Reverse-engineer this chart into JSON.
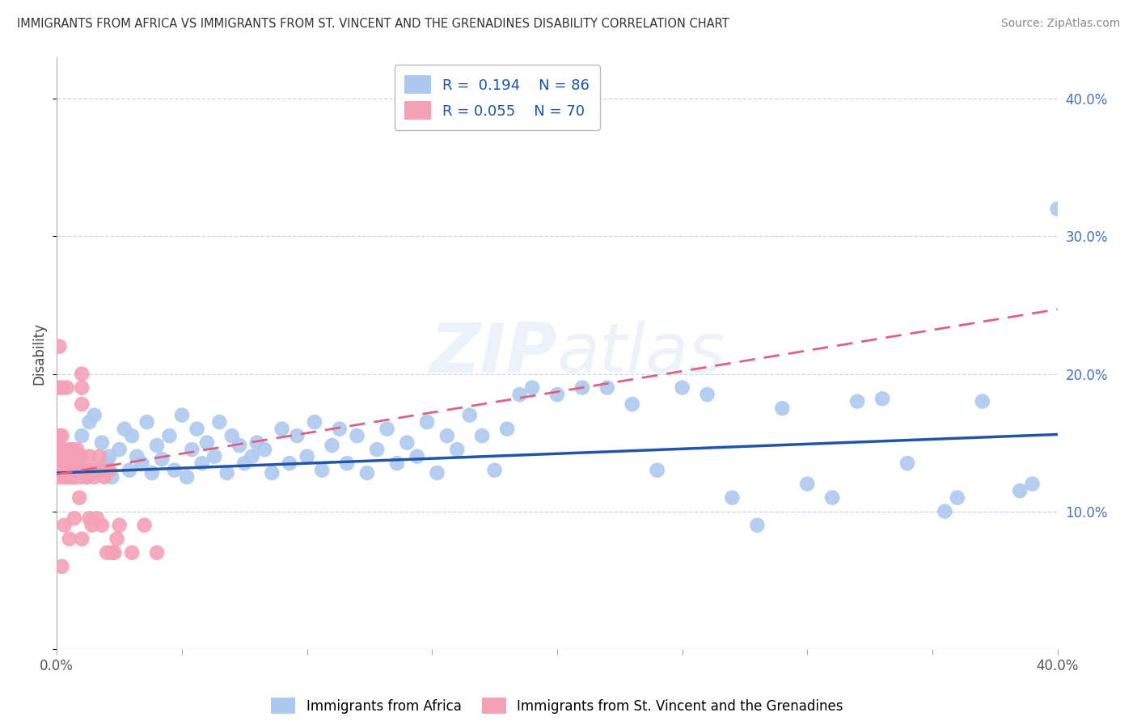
{
  "title": "IMMIGRANTS FROM AFRICA VS IMMIGRANTS FROM ST. VINCENT AND THE GRENADINES DISABILITY CORRELATION CHART",
  "source": "Source: ZipAtlas.com",
  "ylabel": "Disability",
  "xlim": [
    0.0,
    0.4
  ],
  "ylim": [
    0.0,
    0.43
  ],
  "series1": {
    "name": "Immigrants from Africa",
    "color": "#adc9ef",
    "R": 0.194,
    "N": 86,
    "line_color": "#2255aa",
    "trend_slope": 0.07,
    "trend_intercept": 0.128
  },
  "series2": {
    "name": "Immigrants from St. Vincent and the Grenadines",
    "color": "#f4a0b5",
    "R": 0.055,
    "N": 70,
    "line_color": "#e06080",
    "trend_slope": 0.3,
    "trend_intercept": 0.127
  },
  "watermark": "ZIPatlas",
  "background_color": "#ffffff",
  "grid_color": "#ccd5e5",
  "africa_x": [
    0.005,
    0.008,
    0.01,
    0.012,
    0.013,
    0.015,
    0.016,
    0.018,
    0.02,
    0.021,
    0.022,
    0.025,
    0.027,
    0.029,
    0.03,
    0.032,
    0.034,
    0.036,
    0.038,
    0.04,
    0.042,
    0.045,
    0.047,
    0.05,
    0.052,
    0.054,
    0.056,
    0.058,
    0.06,
    0.063,
    0.065,
    0.068,
    0.07,
    0.073,
    0.075,
    0.078,
    0.08,
    0.083,
    0.086,
    0.09,
    0.093,
    0.096,
    0.1,
    0.103,
    0.106,
    0.11,
    0.113,
    0.116,
    0.12,
    0.124,
    0.128,
    0.132,
    0.136,
    0.14,
    0.144,
    0.148,
    0.152,
    0.156,
    0.16,
    0.165,
    0.17,
    0.175,
    0.18,
    0.185,
    0.19,
    0.2,
    0.21,
    0.22,
    0.23,
    0.24,
    0.25,
    0.26,
    0.27,
    0.28,
    0.29,
    0.3,
    0.31,
    0.32,
    0.33,
    0.34,
    0.355,
    0.36,
    0.37,
    0.385,
    0.39,
    0.4
  ],
  "africa_y": [
    0.145,
    0.13,
    0.155,
    0.125,
    0.165,
    0.17,
    0.13,
    0.15,
    0.135,
    0.14,
    0.125,
    0.145,
    0.16,
    0.13,
    0.155,
    0.14,
    0.135,
    0.165,
    0.128,
    0.148,
    0.138,
    0.155,
    0.13,
    0.17,
    0.125,
    0.145,
    0.16,
    0.135,
    0.15,
    0.14,
    0.165,
    0.128,
    0.155,
    0.148,
    0.135,
    0.14,
    0.15,
    0.145,
    0.128,
    0.16,
    0.135,
    0.155,
    0.14,
    0.165,
    0.13,
    0.148,
    0.16,
    0.135,
    0.155,
    0.128,
    0.145,
    0.16,
    0.135,
    0.15,
    0.14,
    0.165,
    0.128,
    0.155,
    0.145,
    0.17,
    0.155,
    0.13,
    0.16,
    0.185,
    0.19,
    0.185,
    0.19,
    0.19,
    0.178,
    0.13,
    0.19,
    0.185,
    0.11,
    0.09,
    0.175,
    0.12,
    0.11,
    0.18,
    0.182,
    0.135,
    0.1,
    0.11,
    0.18,
    0.115,
    0.12,
    0.32
  ],
  "stvg_x": [
    0.001,
    0.001,
    0.001,
    0.001,
    0.001,
    0.001,
    0.002,
    0.002,
    0.002,
    0.002,
    0.002,
    0.002,
    0.003,
    0.003,
    0.003,
    0.003,
    0.003,
    0.004,
    0.004,
    0.004,
    0.004,
    0.005,
    0.005,
    0.005,
    0.005,
    0.006,
    0.006,
    0.006,
    0.007,
    0.007,
    0.007,
    0.007,
    0.008,
    0.008,
    0.008,
    0.009,
    0.009,
    0.009,
    0.01,
    0.01,
    0.01,
    0.01,
    0.01,
    0.01,
    0.01,
    0.012,
    0.012,
    0.013,
    0.013,
    0.014,
    0.014,
    0.015,
    0.015,
    0.016,
    0.016,
    0.017,
    0.018,
    0.018,
    0.019,
    0.02,
    0.02,
    0.021,
    0.022,
    0.023,
    0.024,
    0.025,
    0.03,
    0.035,
    0.04,
    0.002
  ],
  "stvg_y": [
    0.13,
    0.145,
    0.155,
    0.19,
    0.22,
    0.125,
    0.13,
    0.145,
    0.155,
    0.19,
    0.14,
    0.125,
    0.13,
    0.145,
    0.135,
    0.125,
    0.09,
    0.19,
    0.125,
    0.14,
    0.135,
    0.13,
    0.145,
    0.125,
    0.08,
    0.13,
    0.145,
    0.125,
    0.13,
    0.14,
    0.125,
    0.095,
    0.13,
    0.145,
    0.125,
    0.13,
    0.14,
    0.11,
    0.2,
    0.19,
    0.178,
    0.13,
    0.14,
    0.125,
    0.08,
    0.13,
    0.125,
    0.14,
    0.095,
    0.13,
    0.09,
    0.13,
    0.125,
    0.13,
    0.095,
    0.14,
    0.09,
    0.13,
    0.125,
    0.13,
    0.07,
    0.13,
    0.07,
    0.07,
    0.08,
    0.09,
    0.07,
    0.09,
    0.07,
    0.06
  ]
}
